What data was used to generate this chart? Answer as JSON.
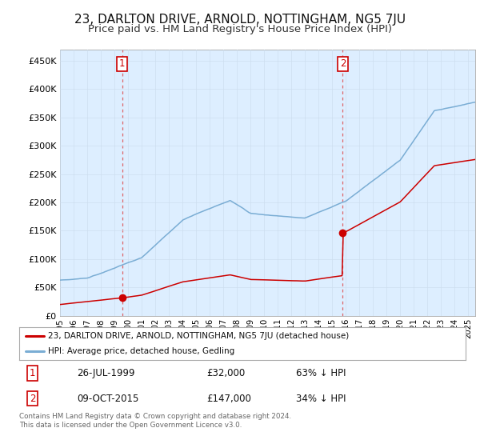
{
  "title": "23, DARLTON DRIVE, ARNOLD, NOTTINGHAM, NG5 7JU",
  "subtitle": "Price paid vs. HM Land Registry's House Price Index (HPI)",
  "title_fontsize": 11,
  "subtitle_fontsize": 9.5,
  "ytick_values": [
    0,
    50000,
    100000,
    150000,
    200000,
    250000,
    300000,
    350000,
    400000,
    450000
  ],
  "ylim": [
    0,
    470000
  ],
  "xlim_start": 1995.3,
  "xlim_end": 2025.5,
  "sale1_x": 1999.57,
  "sale1_y": 32000,
  "sale2_x": 2015.77,
  "sale2_y": 147000,
  "annotation1_label": "1",
  "annotation2_label": "2",
  "red_line_color": "#cc0000",
  "blue_line_color": "#7aadd4",
  "annotation_color": "#cc0000",
  "grid_color": "#ccddee",
  "bg_color": "#ddeeff",
  "plot_bg_color": "#ddeeff",
  "legend_red_label": "23, DARLTON DRIVE, ARNOLD, NOTTINGHAM, NG5 7JU (detached house)",
  "legend_blue_label": "HPI: Average price, detached house, Gedling",
  "table_row1": [
    "1",
    "26-JUL-1999",
    "£32,000",
    "63% ↓ HPI"
  ],
  "table_row2": [
    "2",
    "09-OCT-2015",
    "£147,000",
    "34% ↓ HPI"
  ],
  "footnote": "Contains HM Land Registry data © Crown copyright and database right 2024.\nThis data is licensed under the Open Government Licence v3.0.",
  "vline_color": "#dd4444"
}
